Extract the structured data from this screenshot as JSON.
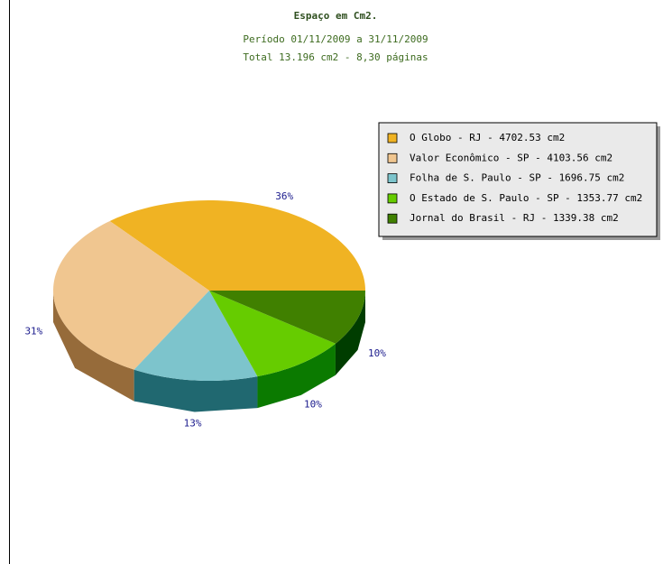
{
  "chart_data": {
    "type": "pie",
    "title": "Espaço em Cm2.",
    "subtitles": [
      "Período 01/11/2009 a 31/11/2009",
      "Total 13.196 cm2 - 8,30 páginas"
    ],
    "categories": [
      "O Globo - RJ - 4702.53 cm2",
      "Valor Econômico - SP - 4103.56 cm2",
      "Folha de S. Paulo - SP - 1696.75 cm2",
      "O Estado de S. Paulo - SP - 1353.77 cm2",
      "Jornal do Brasil - RJ - 1339.38 cm2"
    ],
    "values": [
      36,
      31,
      13,
      10,
      10
    ],
    "value_labels": [
      "36%",
      "31%",
      "13%",
      "10%",
      "10%"
    ],
    "colors": [
      "#f0b323",
      "#f0c690",
      "#7dc4cc",
      "#66cc00",
      "#408000"
    ],
    "side_colors": [
      "#9a6d12",
      "#966b3a",
      "#206870",
      "#0b7a00",
      "#003d00"
    ],
    "legend": "upper right"
  }
}
